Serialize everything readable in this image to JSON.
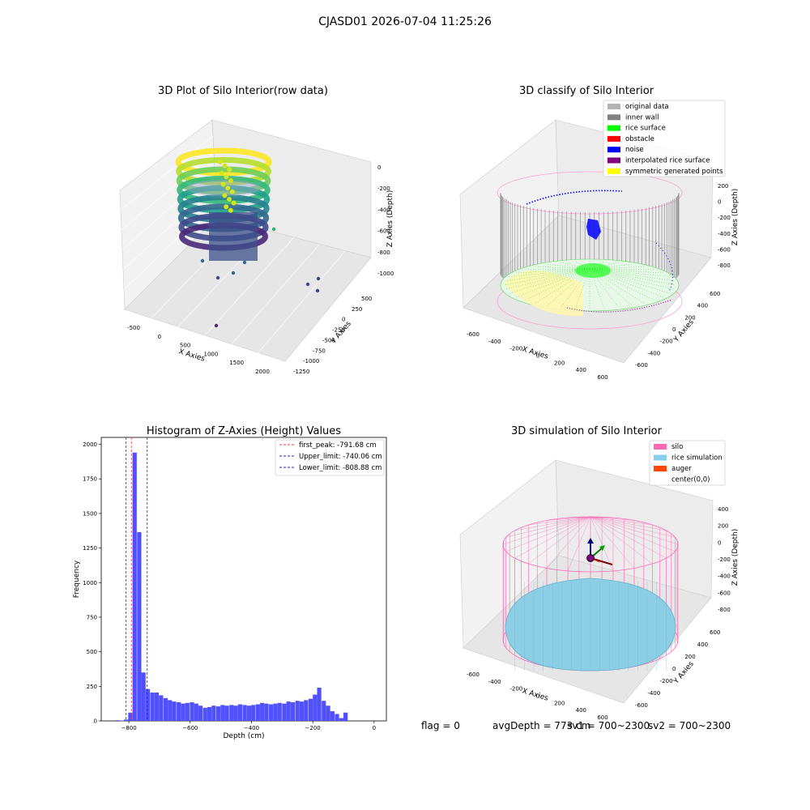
{
  "suptitle": "CJASD01 2026-07-04 11:25:26",
  "footer": {
    "flag": "flag = 0",
    "avg": "avgDepth = 773 cm",
    "sv1": "sv1 = 700~2300",
    "sv2": "sv2 = 700~2300"
  },
  "plot_raw": {
    "title": "3D Plot of Silo Interior(row data)",
    "xlabel": "X Axies",
    "ylabel": "Y Axies",
    "zlabel": "Z Axies (Depth)",
    "xticks": [
      "-500",
      "0",
      "500",
      "1000",
      "1500",
      "2000"
    ],
    "yticks": [
      "500",
      "250",
      "0",
      "-250",
      "-500",
      "-750",
      "-1000",
      "-1250"
    ],
    "zticks": [
      "0",
      "-200",
      "-400",
      "-600",
      "-800",
      "-1000"
    ]
  },
  "plot_classify": {
    "title": "3D classify of Silo Interior",
    "xlabel": "X Axies",
    "ylabel": "Y Axies",
    "zlabel": "Z Axies (Depth)",
    "xticks": [
      "-600",
      "-400",
      "-200",
      "0",
      "200",
      "400",
      "600"
    ],
    "yticks": [
      "600",
      "400",
      "200",
      "0",
      "-200",
      "-400",
      "-600"
    ],
    "zticks": [
      "200",
      "0",
      "-200",
      "-400",
      "-600",
      "-800"
    ],
    "legend": [
      {
        "label": "original data",
        "color": "#b3b3b3"
      },
      {
        "label": "inner wall",
        "color": "#808080"
      },
      {
        "label": "rice surface",
        "color": "#00ff00"
      },
      {
        "label": "obstacle",
        "color": "#ff0000"
      },
      {
        "label": "noise",
        "color": "#0000ff"
      },
      {
        "label": "interpolated rice surface",
        "color": "#800080"
      },
      {
        "label": "symmetric generated points",
        "color": "#ffff00"
      }
    ]
  },
  "plot_sim": {
    "title": "3D simulation of Silo Interior",
    "xlabel": "X Axies",
    "ylabel": "Y Axies",
    "zlabel": "Z Axies (Depth)",
    "xticks": [
      "-600",
      "-400",
      "-200",
      "0",
      "200",
      "400",
      "600"
    ],
    "yticks": [
      "600",
      "400",
      "200",
      "0",
      "-200",
      "-400",
      "-600"
    ],
    "zticks": [
      "400",
      "200",
      "0",
      "-200",
      "-400",
      "-600",
      "-800"
    ],
    "legend": [
      {
        "label": "silo",
        "color": "#ff69b4"
      },
      {
        "label": "rice simulation",
        "color": "#87ceeb"
      },
      {
        "label": "auger",
        "color": "#ff4500"
      },
      {
        "label": "center(0,0)",
        "color": "none"
      }
    ]
  },
  "chart_data": {
    "type": "bar",
    "title": "Histogram of Z-Axies (Height) Values",
    "xlabel": "Depth (cm)",
    "ylabel": "Frequency",
    "xlim": [
      -890,
      40
    ],
    "ylim": [
      0,
      2050
    ],
    "xticks": [
      -800,
      -600,
      -400,
      -200,
      0
    ],
    "yticks": [
      0,
      250,
      500,
      750,
      1000,
      1250,
      1500,
      1750,
      2000
    ],
    "bar_color": "#5050ff",
    "bin_width": 14.3,
    "bins": [
      {
        "x": -845,
        "v": 5
      },
      {
        "x": -831,
        "v": 3
      },
      {
        "x": -816,
        "v": 10
      },
      {
        "x": -802,
        "v": 60
      },
      {
        "x": -788,
        "v": 1940
      },
      {
        "x": -773,
        "v": 1365
      },
      {
        "x": -759,
        "v": 350
      },
      {
        "x": -745,
        "v": 230
      },
      {
        "x": -730,
        "v": 205
      },
      {
        "x": -716,
        "v": 205
      },
      {
        "x": -702,
        "v": 185
      },
      {
        "x": -687,
        "v": 165
      },
      {
        "x": -673,
        "v": 150
      },
      {
        "x": -659,
        "v": 140
      },
      {
        "x": -644,
        "v": 135
      },
      {
        "x": -630,
        "v": 125
      },
      {
        "x": -616,
        "v": 130
      },
      {
        "x": -601,
        "v": 135
      },
      {
        "x": -587,
        "v": 125
      },
      {
        "x": -573,
        "v": 110
      },
      {
        "x": -558,
        "v": 95
      },
      {
        "x": -544,
        "v": 100
      },
      {
        "x": -530,
        "v": 110
      },
      {
        "x": -515,
        "v": 105
      },
      {
        "x": -501,
        "v": 115
      },
      {
        "x": -487,
        "v": 110
      },
      {
        "x": -472,
        "v": 115
      },
      {
        "x": -458,
        "v": 110
      },
      {
        "x": -444,
        "v": 120
      },
      {
        "x": -429,
        "v": 115
      },
      {
        "x": -415,
        "v": 110
      },
      {
        "x": -401,
        "v": 115
      },
      {
        "x": -386,
        "v": 120
      },
      {
        "x": -372,
        "v": 130
      },
      {
        "x": -358,
        "v": 125
      },
      {
        "x": -343,
        "v": 120
      },
      {
        "x": -329,
        "v": 125
      },
      {
        "x": -315,
        "v": 130
      },
      {
        "x": -300,
        "v": 125
      },
      {
        "x": -286,
        "v": 140
      },
      {
        "x": -272,
        "v": 135
      },
      {
        "x": -257,
        "v": 145
      },
      {
        "x": -243,
        "v": 140
      },
      {
        "x": -229,
        "v": 150
      },
      {
        "x": -214,
        "v": 160
      },
      {
        "x": -200,
        "v": 190
      },
      {
        "x": -186,
        "v": 240
      },
      {
        "x": -171,
        "v": 145
      },
      {
        "x": -157,
        "v": 110
      },
      {
        "x": -143,
        "v": 70
      },
      {
        "x": -128,
        "v": 50
      },
      {
        "x": -114,
        "v": 20
      },
      {
        "x": -100,
        "v": 60
      }
    ],
    "vlines": [
      {
        "x": -791.68,
        "label": "first_peak: -791.68 cm",
        "color": "#ff3b3b"
      },
      {
        "x": -740.06,
        "label": "Upper_limit: -740.06 cm",
        "color": "#2020cc"
      },
      {
        "x": -808.88,
        "label": "Lower_limit: -808.88 cm",
        "color": "#2020cc"
      }
    ],
    "legend_position": "top-right"
  }
}
